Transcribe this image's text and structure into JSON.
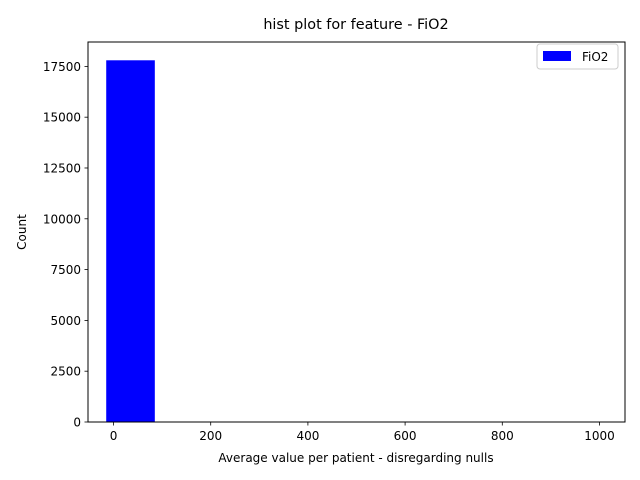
{
  "chart_data": {
    "type": "bar",
    "title": "hist plot for feature -  FiO2",
    "xlabel": "Average value per patient - disregarding nulls",
    "ylabel": "Count",
    "xlim": [
      -52.5,
      1052.5
    ],
    "ylim": [
      0,
      18700
    ],
    "xticks": [
      0,
      200,
      400,
      600,
      800,
      1000
    ],
    "yticks": [
      0,
      2500,
      5000,
      7500,
      10000,
      12500,
      15000,
      17500
    ],
    "bins": [
      {
        "x0": -15,
        "x1": 85,
        "count": 17800
      },
      {
        "x0": 85,
        "x1": 185,
        "count": 0
      },
      {
        "x0": 185,
        "x1": 285,
        "count": 0
      },
      {
        "x0": 285,
        "x1": 385,
        "count": 0
      },
      {
        "x0": 385,
        "x1": 485,
        "count": 0
      },
      {
        "x0": 485,
        "x1": 585,
        "count": 0
      },
      {
        "x0": 585,
        "x1": 685,
        "count": 0
      },
      {
        "x0": 685,
        "x1": 785,
        "count": 0
      },
      {
        "x0": 785,
        "x1": 885,
        "count": 0
      },
      {
        "x0": 885,
        "x1": 1000,
        "count": 2
      }
    ],
    "series": [
      {
        "name": "FiO2",
        "color": "#0000ff"
      }
    ],
    "legend": "top-right",
    "grid": false
  }
}
